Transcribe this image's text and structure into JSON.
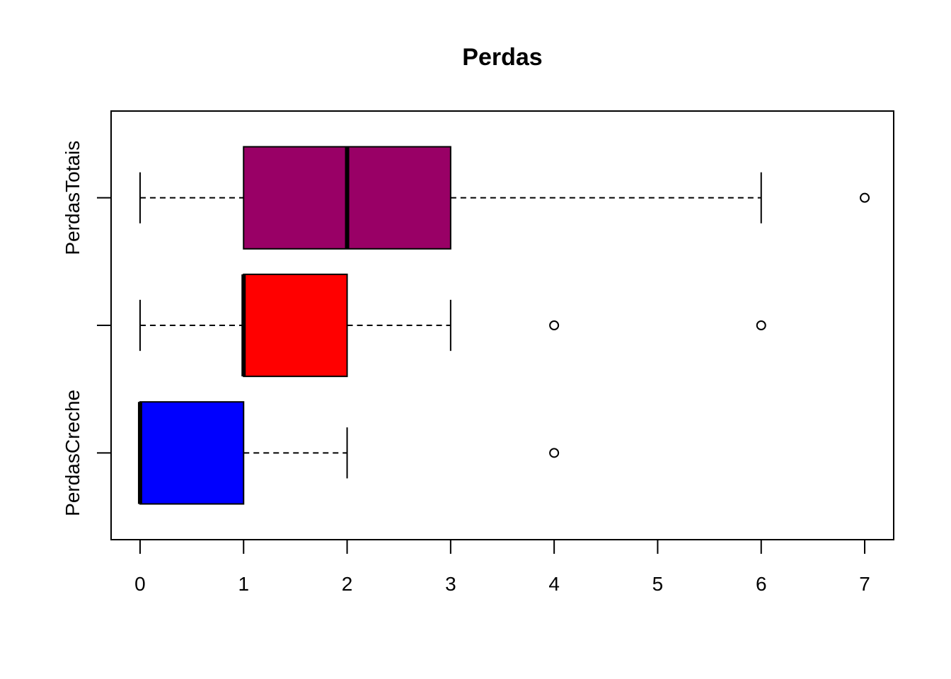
{
  "chart_data": {
    "type": "boxplot",
    "orientation": "horizontal",
    "title": "Perdas",
    "xlabel": "",
    "ylabel": "",
    "xlim": [
      -0.28,
      7.28
    ],
    "x_ticks": [
      0,
      1,
      2,
      3,
      4,
      5,
      6,
      7
    ],
    "grid": false,
    "categories": [
      "PerdasCreche",
      "",
      "PerdasTotais"
    ],
    "boxes": [
      {
        "label": "PerdasCreche",
        "color": "#0000ff",
        "whisker_low": 0,
        "q1": 0,
        "median": 0,
        "q3": 1,
        "whisker_high": 2,
        "outliers": [
          4
        ]
      },
      {
        "label": "",
        "color": "#ff0000",
        "whisker_low": 0,
        "q1": 1,
        "median": 1,
        "q3": 2,
        "whisker_high": 3,
        "outliers": [
          4,
          6
        ]
      },
      {
        "label": "PerdasTotais",
        "color": "#990066",
        "whisker_low": 0,
        "q1": 1,
        "median": 2,
        "q3": 3,
        "whisker_high": 6,
        "outliers": [
          7
        ]
      }
    ]
  }
}
